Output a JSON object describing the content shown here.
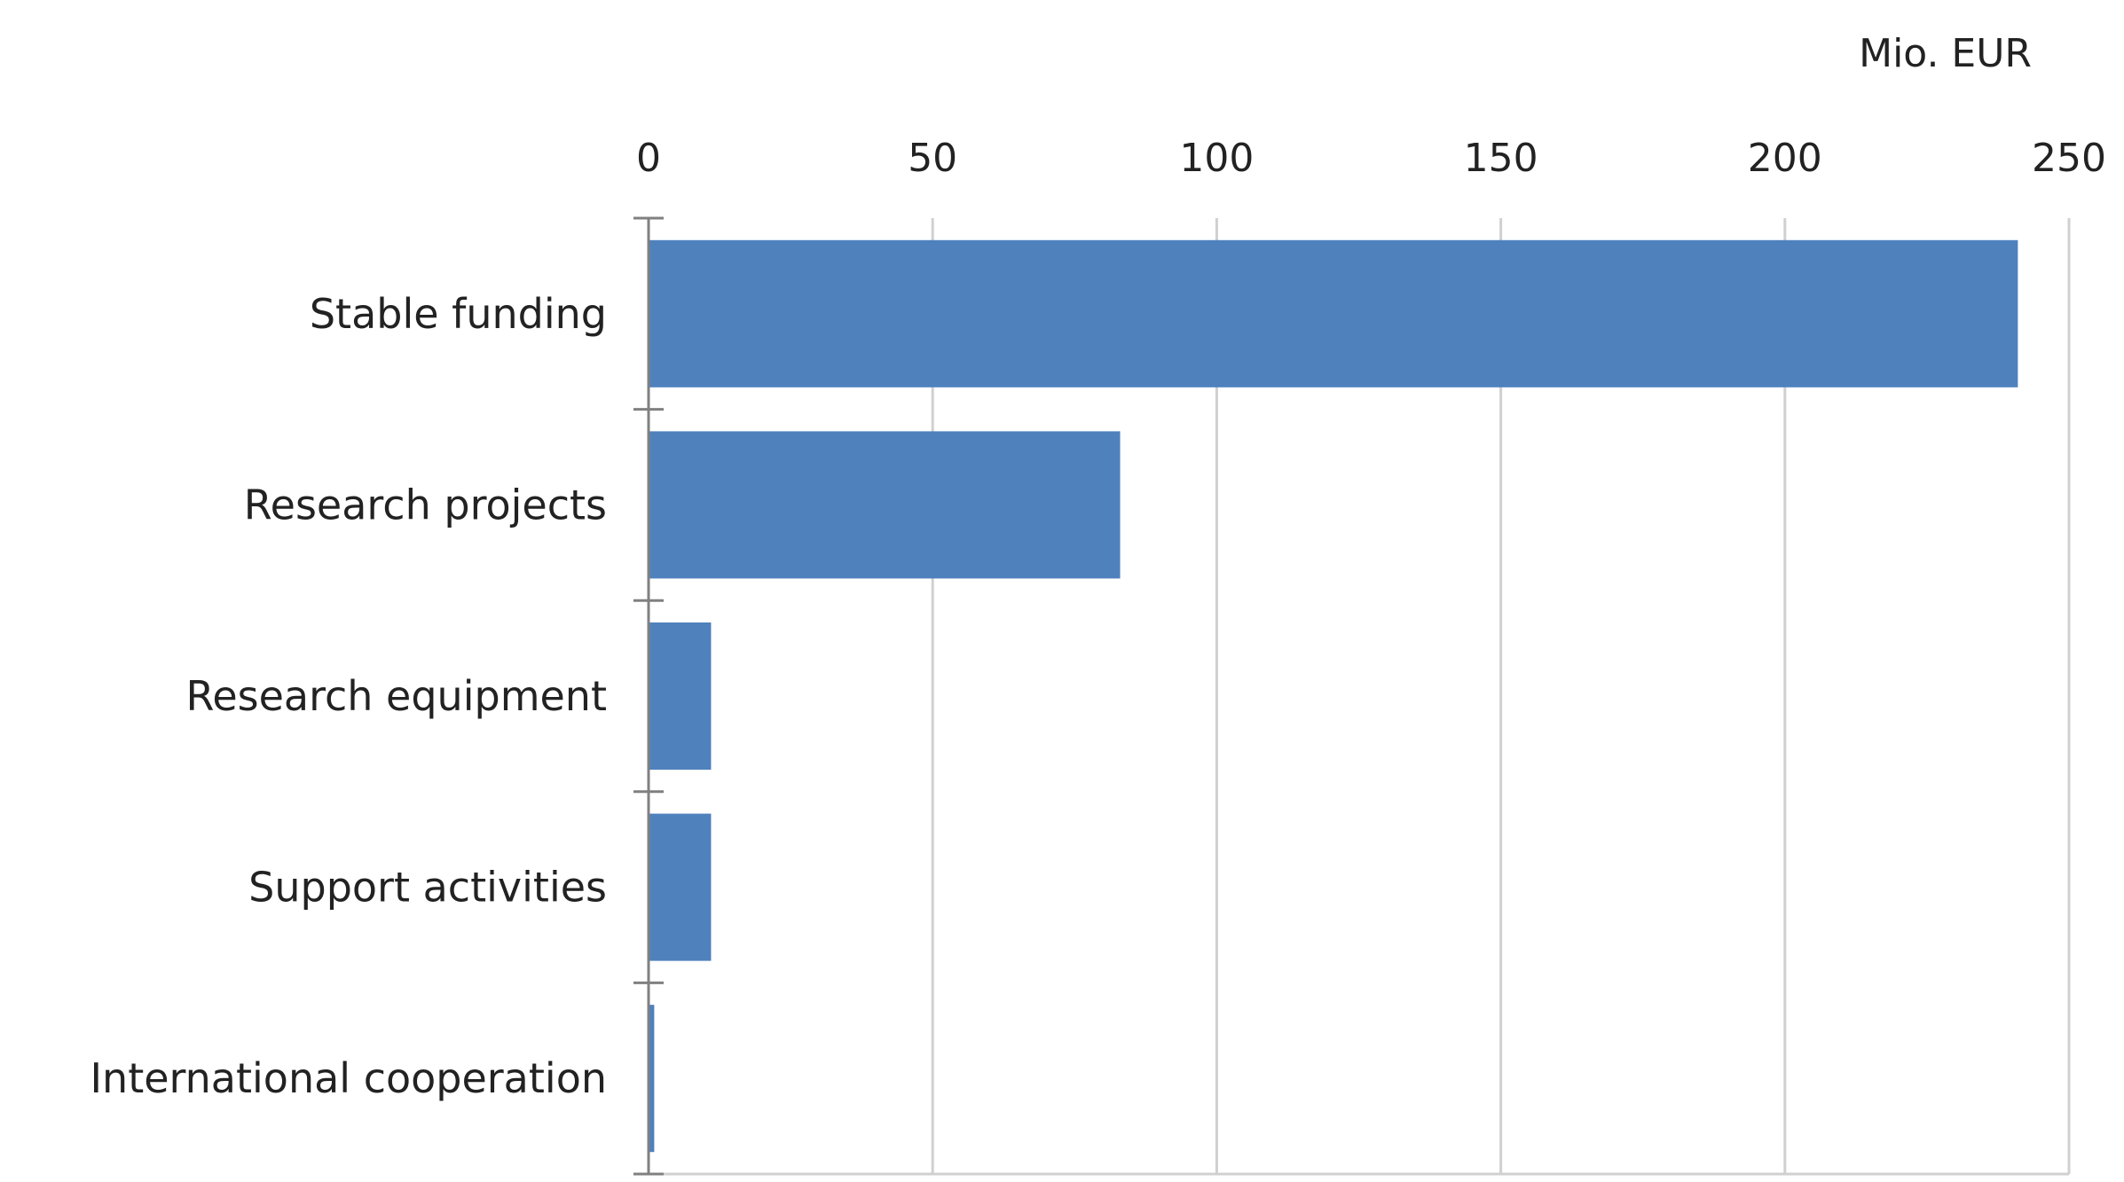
{
  "chart_data": {
    "type": "bar",
    "orientation": "horizontal",
    "unit_label": "Mio. EUR",
    "categories": [
      "Stable funding",
      "Research projects",
      "Research equipment",
      "Support activities",
      "International cooperation"
    ],
    "values": [
      241,
      83,
      11,
      11,
      1
    ],
    "xlim": [
      0,
      250
    ],
    "x_ticks": [
      "0",
      "50",
      "100",
      "150",
      "200",
      "250"
    ],
    "x_axis_position": "top",
    "grid": true,
    "legend": "none",
    "colors": {
      "bar": "#4f81bd",
      "grid": "#d0d0d0",
      "axis": "#808080"
    }
  }
}
